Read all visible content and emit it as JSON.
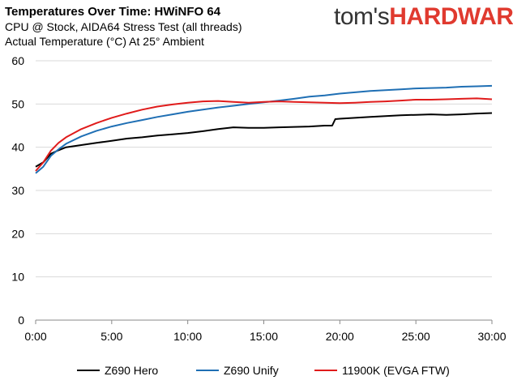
{
  "header": {
    "title": "Temperatures Over Time: HWiNFO 64",
    "subtitle": "CPU @ Stock, AIDA64 Stress Test (all threads)",
    "subtitle2": "Actual Temperature (°C) At 25° Ambient"
  },
  "logo": {
    "part1": "tom's",
    "part2": "HARDWARE"
  },
  "chart_data": {
    "type": "line",
    "title": "Temperatures Over Time: HWiNFO 64",
    "xlabel": "",
    "ylabel": "",
    "xlim": [
      0,
      30
    ],
    "ylim": [
      0,
      60
    ],
    "x_ticks": [
      "0:00",
      "5:00",
      "10:00",
      "15:00",
      "20:00",
      "25:00",
      "30:00"
    ],
    "y_ticks": [
      "0",
      "10",
      "20",
      "30",
      "40",
      "50",
      "60"
    ],
    "grid": "horizontal",
    "legend_position": "bottom",
    "series": [
      {
        "name": "Z690 Hero",
        "color": "#000000",
        "x": [
          0,
          0.5,
          1,
          1.5,
          2,
          3,
          4,
          5,
          6,
          7,
          8,
          9,
          10,
          11,
          12,
          13,
          14,
          15,
          16,
          17,
          18,
          19,
          19.5,
          19.7,
          20,
          21,
          22,
          23,
          24,
          25,
          26,
          27,
          28,
          29,
          30
        ],
        "values": [
          35.5,
          36.5,
          38.5,
          39.3,
          40.0,
          40.5,
          41.0,
          41.5,
          42.0,
          42.3,
          42.7,
          43.0,
          43.3,
          43.7,
          44.2,
          44.6,
          44.5,
          44.5,
          44.6,
          44.7,
          44.8,
          45.0,
          45.0,
          46.5,
          46.6,
          46.8,
          47.0,
          47.2,
          47.4,
          47.5,
          47.6,
          47.5,
          47.6,
          47.8,
          47.9
        ]
      },
      {
        "name": "Z690 Unify",
        "color": "#1f6fb4",
        "x": [
          0,
          0.5,
          1,
          1.5,
          2,
          3,
          4,
          5,
          6,
          7,
          8,
          9,
          10,
          11,
          12,
          13,
          14,
          15,
          16,
          17,
          18,
          19,
          20,
          21,
          22,
          23,
          24,
          25,
          26,
          27,
          28,
          29,
          30
        ],
        "values": [
          34.0,
          35.5,
          38.0,
          39.5,
          40.8,
          42.5,
          43.8,
          44.8,
          45.6,
          46.3,
          47.0,
          47.6,
          48.2,
          48.7,
          49.2,
          49.6,
          50.0,
          50.4,
          50.8,
          51.2,
          51.7,
          52.0,
          52.4,
          52.7,
          53.0,
          53.2,
          53.4,
          53.6,
          53.7,
          53.8,
          54.0,
          54.1,
          54.2
        ]
      },
      {
        "name": "11900K (EVGA FTW)",
        "color": "#e01b1b",
        "x": [
          0,
          0.5,
          1,
          1.5,
          2,
          3,
          4,
          5,
          6,
          7,
          8,
          9,
          10,
          11,
          12,
          13,
          14,
          15,
          16,
          17,
          18,
          19,
          20,
          21,
          22,
          23,
          24,
          25,
          26,
          27,
          28,
          29,
          30
        ],
        "values": [
          34.5,
          36.5,
          39.2,
          41.0,
          42.3,
          44.2,
          45.6,
          46.8,
          47.8,
          48.7,
          49.4,
          49.9,
          50.3,
          50.6,
          50.7,
          50.5,
          50.3,
          50.5,
          50.6,
          50.5,
          50.4,
          50.3,
          50.2,
          50.3,
          50.5,
          50.6,
          50.8,
          51.0,
          51.0,
          51.1,
          51.2,
          51.3,
          51.1
        ]
      }
    ]
  }
}
